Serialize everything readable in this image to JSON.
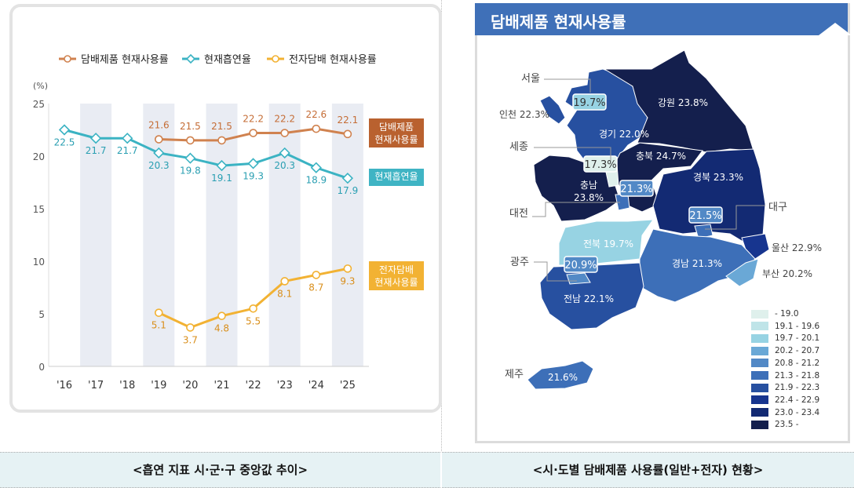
{
  "chart_data": {
    "type": "line",
    "categories": [
      "'16",
      "'17",
      "'18",
      "'19",
      "'20",
      "'21",
      "'22",
      "'23",
      "'24",
      "'25"
    ],
    "yunit": "(%)",
    "ylim": [
      0,
      25
    ],
    "yticks": [
      0,
      5,
      10,
      15,
      20,
      25
    ],
    "legend_position": "top",
    "series": [
      {
        "name": "담배제품 현재사용률",
        "end_label": "담배제품\n현재사용률",
        "color": "#d0824f",
        "label_bg": "#b9612f",
        "marker": "circle",
        "values": [
          null,
          null,
          null,
          21.6,
          21.5,
          21.5,
          22.2,
          22.2,
          22.6,
          22.1
        ]
      },
      {
        "name": "현재흡연율",
        "end_label": "현재흡연율",
        "color": "#3bb3c3",
        "label_bg": "#3fb4c4",
        "marker": "diamond",
        "values": [
          22.5,
          21.7,
          21.7,
          20.3,
          19.8,
          19.1,
          19.3,
          20.3,
          18.9,
          17.9
        ]
      },
      {
        "name": "전자담배 현재사용률",
        "end_label": "전자담배\n현재사용률",
        "color": "#f2b233",
        "label_bg": "#f2b233",
        "marker": "circle",
        "values": [
          null,
          null,
          null,
          5.1,
          3.7,
          4.8,
          5.5,
          8.1,
          8.7,
          9.3
        ]
      }
    ]
  },
  "map": {
    "title": "담배제품 현재사용률",
    "regions": [
      {
        "name": "서울",
        "value": "19.7%"
      },
      {
        "name": "인천",
        "value": "22.3%"
      },
      {
        "name": "경기",
        "value": "22.0%"
      },
      {
        "name": "강원",
        "value": "23.8%"
      },
      {
        "name": "세종",
        "value": "17.3%"
      },
      {
        "name": "충북",
        "value": "24.7%"
      },
      {
        "name": "충남",
        "value": "23.8%"
      },
      {
        "name": "대전",
        "value": "21.3%"
      },
      {
        "name": "경북",
        "value": "23.3%"
      },
      {
        "name": "대구",
        "value": "21.5%"
      },
      {
        "name": "전북",
        "value": "19.7%"
      },
      {
        "name": "울산",
        "value": "22.9%"
      },
      {
        "name": "광주",
        "value": "20.9%"
      },
      {
        "name": "경남",
        "value": "21.3%"
      },
      {
        "name": "부산",
        "value": "20.2%"
      },
      {
        "name": "전남",
        "value": "22.1%"
      },
      {
        "name": "제주",
        "value": "21.6%"
      }
    ],
    "legend": [
      {
        "label": "- 19.0",
        "color": "#dff0ec"
      },
      {
        "label": "19.1 - 19.6",
        "color": "#bfe4e8"
      },
      {
        "label": "19.7 - 20.1",
        "color": "#97d3e3"
      },
      {
        "label": "20.2 - 20.7",
        "color": "#6aa8d6"
      },
      {
        "label": "20.8 - 21.2",
        "color": "#5289c6"
      },
      {
        "label": "21.3 - 21.8",
        "color": "#3d6fb8"
      },
      {
        "label": "21.9 - 22.3",
        "color": "#2750a0"
      },
      {
        "label": "22.4 - 22.9",
        "color": "#17358f"
      },
      {
        "label": "23.0 - 23.4",
        "color": "#132a73"
      },
      {
        "label": "23.5 -",
        "color": "#141f4d"
      }
    ]
  },
  "captions": {
    "left": "<흡연 지표 시·군·구 중앙값 추이>",
    "right": "<시·도별 담배제품 사용률(일반+전자) 현황>"
  }
}
